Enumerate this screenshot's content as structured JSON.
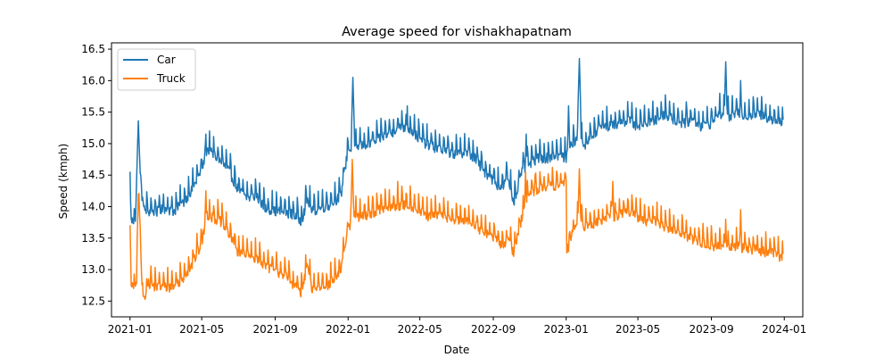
{
  "chart_data": {
    "type": "line",
    "title": "Average speed for vishakhapatnam",
    "xlabel": "Date",
    "ylabel": "Speed (kmph)",
    "xlim": [
      "2020-12-01",
      "2024-02-01"
    ],
    "ylim": [
      12.25,
      16.6
    ],
    "x_ticks": [
      "2021-01",
      "2021-05",
      "2021-09",
      "2022-01",
      "2022-05",
      "2022-09",
      "2023-01",
      "2023-05",
      "2023-09",
      "2024-01"
    ],
    "y_ticks": [
      "12.5",
      "13.0",
      "13.5",
      "14.0",
      "14.5",
      "15.0",
      "15.5",
      "16.0",
      "16.5"
    ],
    "grid": false,
    "legend_position": "top-left",
    "frequency": "daily",
    "series": [
      {
        "name": "Car",
        "color": "#1f77b4",
        "points": [
          [
            "2021-01-01",
            14.3
          ],
          [
            "2021-01-03",
            13.8
          ],
          [
            "2021-01-10",
            13.8
          ],
          [
            "2021-01-15",
            15.1
          ],
          [
            "2021-01-22",
            14.0
          ],
          [
            "2021-02-01",
            13.95
          ],
          [
            "2021-02-15",
            13.95
          ],
          [
            "2021-03-01",
            14.0
          ],
          [
            "2021-03-15",
            13.95
          ],
          [
            "2021-04-01",
            14.1
          ],
          [
            "2021-04-15",
            14.3
          ],
          [
            "2021-05-01",
            14.6
          ],
          [
            "2021-05-10",
            14.95
          ],
          [
            "2021-05-20",
            14.85
          ],
          [
            "2021-06-01",
            14.75
          ],
          [
            "2021-06-15",
            14.6
          ],
          [
            "2021-07-01",
            14.3
          ],
          [
            "2021-07-15",
            14.15
          ],
          [
            "2021-08-01",
            14.2
          ],
          [
            "2021-08-15",
            14.0
          ],
          [
            "2021-09-01",
            13.95
          ],
          [
            "2021-09-15",
            13.95
          ],
          [
            "2021-10-01",
            13.9
          ],
          [
            "2021-10-15",
            13.8
          ],
          [
            "2021-10-25",
            14.15
          ],
          [
            "2021-11-01",
            13.95
          ],
          [
            "2021-11-15",
            14.0
          ],
          [
            "2021-12-01",
            14.05
          ],
          [
            "2021-12-20",
            14.2
          ],
          [
            "2022-01-01",
            14.95
          ],
          [
            "2022-01-10",
            14.9
          ],
          [
            "2022-01-20",
            15.0
          ],
          [
            "2022-02-01",
            15.0
          ],
          [
            "2022-02-15",
            15.05
          ],
          [
            "2022-03-01",
            15.15
          ],
          [
            "2022-03-15",
            15.2
          ],
          [
            "2022-04-01",
            15.3
          ],
          [
            "2022-04-15",
            15.25
          ],
          [
            "2022-05-01",
            15.1
          ],
          [
            "2022-05-15",
            15.0
          ],
          [
            "2022-06-01",
            14.95
          ],
          [
            "2022-06-15",
            14.9
          ],
          [
            "2022-07-01",
            14.85
          ],
          [
            "2022-07-15",
            14.9
          ],
          [
            "2022-08-01",
            14.8
          ],
          [
            "2022-08-15",
            14.6
          ],
          [
            "2022-09-01",
            14.45
          ],
          [
            "2022-09-15",
            14.3
          ],
          [
            "2022-09-25",
            14.5
          ],
          [
            "2022-10-05",
            14.1
          ],
          [
            "2022-10-20",
            14.6
          ],
          [
            "2022-11-01",
            14.7
          ],
          [
            "2022-11-15",
            14.8
          ],
          [
            "2022-12-01",
            14.8
          ],
          [
            "2022-12-15",
            14.85
          ],
          [
            "2023-01-01",
            14.8
          ],
          [
            "2023-01-10",
            15.0
          ],
          [
            "2023-01-20",
            15.1
          ],
          [
            "2023-02-01",
            15.0
          ],
          [
            "2023-02-15",
            15.15
          ],
          [
            "2023-03-01",
            15.3
          ],
          [
            "2023-03-15",
            15.3
          ],
          [
            "2023-04-01",
            15.35
          ],
          [
            "2023-04-15",
            15.4
          ],
          [
            "2023-05-01",
            15.3
          ],
          [
            "2023-05-15",
            15.35
          ],
          [
            "2023-06-01",
            15.4
          ],
          [
            "2023-06-15",
            15.5
          ],
          [
            "2023-07-01",
            15.4
          ],
          [
            "2023-07-15",
            15.35
          ],
          [
            "2023-08-01",
            15.4
          ],
          [
            "2023-08-15",
            15.3
          ],
          [
            "2023-09-01",
            15.35
          ],
          [
            "2023-09-15",
            15.5
          ],
          [
            "2023-10-01",
            15.45
          ],
          [
            "2023-10-15",
            15.5
          ],
          [
            "2023-11-01",
            15.45
          ],
          [
            "2023-11-15",
            15.5
          ],
          [
            "2023-12-01",
            15.45
          ],
          [
            "2023-12-15",
            15.4
          ],
          [
            "2023-12-30",
            15.35
          ]
        ],
        "spikes": [
          [
            "2021-01-14",
            15.1
          ],
          [
            "2021-05-08",
            15.15
          ],
          [
            "2022-01-09",
            16.05
          ],
          [
            "2022-04-10",
            15.6
          ],
          [
            "2022-10-26",
            15.15
          ],
          [
            "2023-01-05",
            15.6
          ],
          [
            "2023-01-23",
            16.35
          ],
          [
            "2023-09-25",
            16.3
          ],
          [
            "2023-10-20",
            16.0
          ]
        ]
      },
      {
        "name": "Truck",
        "color": "#ff7f0e",
        "points": [
          [
            "2021-01-01",
            13.55
          ],
          [
            "2021-01-03",
            12.75
          ],
          [
            "2021-01-12",
            12.75
          ],
          [
            "2021-01-16",
            14.2
          ],
          [
            "2021-01-22",
            12.5
          ],
          [
            "2021-02-01",
            12.8
          ],
          [
            "2021-02-15",
            12.75
          ],
          [
            "2021-03-01",
            12.75
          ],
          [
            "2021-03-15",
            12.75
          ],
          [
            "2021-04-01",
            12.9
          ],
          [
            "2021-04-15",
            13.1
          ],
          [
            "2021-05-01",
            13.45
          ],
          [
            "2021-05-10",
            13.9
          ],
          [
            "2021-05-20",
            13.85
          ],
          [
            "2021-06-01",
            13.8
          ],
          [
            "2021-06-15",
            13.6
          ],
          [
            "2021-07-01",
            13.3
          ],
          [
            "2021-07-15",
            13.25
          ],
          [
            "2021-08-01",
            13.2
          ],
          [
            "2021-08-15",
            13.1
          ],
          [
            "2021-09-01",
            13.0
          ],
          [
            "2021-09-15",
            12.95
          ],
          [
            "2021-10-01",
            12.8
          ],
          [
            "2021-10-15",
            12.65
          ],
          [
            "2021-10-25",
            13.1
          ],
          [
            "2021-11-01",
            12.7
          ],
          [
            "2021-11-15",
            12.75
          ],
          [
            "2021-12-01",
            12.8
          ],
          [
            "2021-12-20",
            13.0
          ],
          [
            "2022-01-01",
            13.65
          ],
          [
            "2022-01-10",
            13.9
          ],
          [
            "2022-01-20",
            13.85
          ],
          [
            "2022-02-01",
            13.9
          ],
          [
            "2022-02-15",
            13.95
          ],
          [
            "2022-03-01",
            14.0
          ],
          [
            "2022-03-15",
            14.0
          ],
          [
            "2022-04-01",
            14.05
          ],
          [
            "2022-04-15",
            14.05
          ],
          [
            "2022-05-01",
            13.95
          ],
          [
            "2022-05-15",
            13.85
          ],
          [
            "2022-06-01",
            13.9
          ],
          [
            "2022-06-15",
            13.85
          ],
          [
            "2022-07-01",
            13.8
          ],
          [
            "2022-07-15",
            13.8
          ],
          [
            "2022-08-01",
            13.75
          ],
          [
            "2022-08-15",
            13.6
          ],
          [
            "2022-09-01",
            13.55
          ],
          [
            "2022-09-15",
            13.4
          ],
          [
            "2022-09-25",
            13.5
          ],
          [
            "2022-10-05",
            13.3
          ],
          [
            "2022-10-20",
            13.9
          ],
          [
            "2022-11-01",
            14.25
          ],
          [
            "2022-11-15",
            14.3
          ],
          [
            "2022-12-01",
            14.35
          ],
          [
            "2022-12-15",
            14.35
          ],
          [
            "2023-01-01",
            14.4
          ],
          [
            "2023-01-02",
            13.3
          ],
          [
            "2023-01-10",
            13.55
          ],
          [
            "2023-01-20",
            13.8
          ],
          [
            "2023-02-01",
            13.7
          ],
          [
            "2023-02-15",
            13.75
          ],
          [
            "2023-03-01",
            13.8
          ],
          [
            "2023-03-15",
            13.85
          ],
          [
            "2023-04-01",
            13.9
          ],
          [
            "2023-04-15",
            13.95
          ],
          [
            "2023-05-01",
            13.85
          ],
          [
            "2023-05-15",
            13.8
          ],
          [
            "2023-06-01",
            13.8
          ],
          [
            "2023-06-15",
            13.7
          ],
          [
            "2023-07-01",
            13.65
          ],
          [
            "2023-07-15",
            13.6
          ],
          [
            "2023-08-01",
            13.5
          ],
          [
            "2023-08-15",
            13.45
          ],
          [
            "2023-09-01",
            13.4
          ],
          [
            "2023-09-15",
            13.4
          ],
          [
            "2023-10-01",
            13.35
          ],
          [
            "2023-10-15",
            13.4
          ],
          [
            "2023-11-01",
            13.35
          ],
          [
            "2023-11-15",
            13.35
          ],
          [
            "2023-12-01",
            13.3
          ],
          [
            "2023-12-15",
            13.3
          ],
          [
            "2023-12-30",
            13.2
          ]
        ],
        "spikes": [
          [
            "2021-01-15",
            14.2
          ],
          [
            "2021-05-08",
            14.25
          ],
          [
            "2022-01-08",
            14.75
          ],
          [
            "2022-03-25",
            14.4
          ],
          [
            "2022-10-25",
            14.55
          ],
          [
            "2022-11-10",
            14.5
          ],
          [
            "2023-01-23",
            14.6
          ],
          [
            "2023-03-20",
            14.4
          ],
          [
            "2023-09-25",
            13.8
          ],
          [
            "2023-10-20",
            13.95
          ]
        ]
      }
    ]
  }
}
